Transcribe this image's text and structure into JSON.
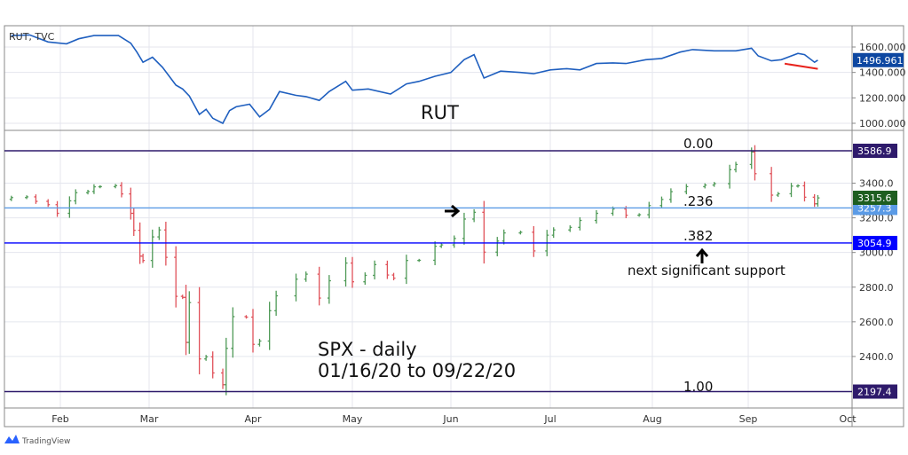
{
  "chart_data": [
    {
      "type": "line",
      "title": "RUT, TVC",
      "annotation": "RUT",
      "ylim": [
        900,
        1720
      ],
      "y_ticks": [
        "1600.000",
        "1400.000",
        "1200.000",
        "1000.000"
      ],
      "last_value_label": "1496.961",
      "line_color": "#1f5fbf",
      "series": [
        {
          "x": [
            "2020-01-16",
            "2020-01-22",
            "2020-01-28",
            "2020-02-03",
            "2020-02-07",
            "2020-02-12",
            "2020-02-20",
            "2020-02-24",
            "2020-02-26",
            "2020-02-28",
            "2020-03-02",
            "2020-03-05",
            "2020-03-09",
            "2020-03-11",
            "2020-03-13",
            "2020-03-16",
            "2020-03-18",
            "2020-03-20",
            "2020-03-23",
            "2020-03-25",
            "2020-03-27",
            "2020-03-31",
            "2020-04-03",
            "2020-04-06",
            "2020-04-09",
            "2020-04-14",
            "2020-04-17",
            "2020-04-21",
            "2020-04-24",
            "2020-04-29",
            "2020-05-01",
            "2020-05-06",
            "2020-05-13",
            "2020-05-18",
            "2020-05-22",
            "2020-05-27",
            "2020-06-01",
            "2020-06-05",
            "2020-06-08",
            "2020-06-11",
            "2020-06-16",
            "2020-06-22",
            "2020-06-26",
            "2020-07-01",
            "2020-07-06",
            "2020-07-10",
            "2020-07-15",
            "2020-07-20",
            "2020-07-24",
            "2020-07-30",
            "2020-08-04",
            "2020-08-10",
            "2020-08-14",
            "2020-08-21",
            "2020-08-28",
            "2020-09-02",
            "2020-09-04",
            "2020-09-08",
            "2020-09-11",
            "2020-09-16",
            "2020-09-18",
            "2020-09-21",
            "2020-09-22"
          ],
          "values": [
            1690,
            1695,
            1640,
            1625,
            1665,
            1690,
            1690,
            1630,
            1560,
            1480,
            1520,
            1440,
            1300,
            1270,
            1215,
            1070,
            1110,
            1040,
            1000,
            1100,
            1130,
            1150,
            1050,
            1110,
            1250,
            1220,
            1210,
            1180,
            1250,
            1330,
            1260,
            1270,
            1230,
            1310,
            1330,
            1370,
            1400,
            1500,
            1540,
            1356,
            1410,
            1400,
            1390,
            1420,
            1430,
            1420,
            1470,
            1475,
            1470,
            1500,
            1510,
            1560,
            1580,
            1570,
            1570,
            1590,
            1530,
            1491,
            1500,
            1550,
            1540,
            1480,
            1497
          ]
        }
      ],
      "trendline": {
        "color": "#e8231c",
        "from": [
          "2020-09-12",
          1469
        ],
        "to": [
          "2020-09-22",
          1428
        ]
      }
    },
    {
      "type": "ohlc",
      "title": "SPX - daily",
      "subtitle": "01/16/20 to 09/22/20",
      "ylim": [
        2170,
        3640
      ],
      "y_ticks": [
        "3400.0",
        "3200.0",
        "3000.0",
        "2800.0",
        "2600.0",
        "2400.0"
      ],
      "x_ticks": [
        "Feb",
        "Mar",
        "Apr",
        "May",
        "Jun",
        "Jul",
        "Aug",
        "Sep",
        "Oct"
      ],
      "up_color": "#4f9a57",
      "down_color": "#e0525a",
      "last_value_label": "3315.6",
      "series": [
        {
          "x": [
            "2020-01-16",
            "2020-01-21",
            "2020-01-24",
            "2020-01-28",
            "2020-01-31",
            "2020-02-04",
            "2020-02-06",
            "2020-02-10",
            "2020-02-12",
            "2020-02-14",
            "2020-02-19",
            "2020-02-21",
            "2020-02-24",
            "2020-02-25",
            "2020-02-27",
            "2020-02-28",
            "2020-03-02",
            "2020-03-04",
            "2020-03-06",
            "2020-03-09",
            "2020-03-11",
            "2020-03-12",
            "2020-03-13",
            "2020-03-16",
            "2020-03-18",
            "2020-03-20",
            "2020-03-23",
            "2020-03-24",
            "2020-03-26",
            "2020-03-30",
            "2020-04-01",
            "2020-04-03",
            "2020-04-06",
            "2020-04-08",
            "2020-04-14",
            "2020-04-17",
            "2020-04-21",
            "2020-04-24",
            "2020-04-29",
            "2020-05-01",
            "2020-05-05",
            "2020-05-08",
            "2020-05-12",
            "2020-05-14",
            "2020-05-18",
            "2020-05-22",
            "2020-05-27",
            "2020-05-29",
            "2020-06-02",
            "2020-06-05",
            "2020-06-08",
            "2020-06-11",
            "2020-06-15",
            "2020-06-17",
            "2020-06-22",
            "2020-06-26",
            "2020-06-30",
            "2020-07-02",
            "2020-07-07",
            "2020-07-10",
            "2020-07-15",
            "2020-07-20",
            "2020-07-24",
            "2020-07-28",
            "2020-07-31",
            "2020-08-04",
            "2020-08-07",
            "2020-08-12",
            "2020-08-18",
            "2020-08-21",
            "2020-08-26",
            "2020-08-28",
            "2020-09-02",
            "2020-09-03",
            "2020-09-08",
            "2020-09-10",
            "2020-09-14",
            "2020-09-16",
            "2020-09-18",
            "2020-09-21",
            "2020-09-22"
          ],
          "close": [
            3317,
            3321,
            3295,
            3276,
            3226,
            3298,
            3345,
            3352,
            3379,
            3380,
            3386,
            3338,
            3226,
            3128,
            2979,
            2954,
            3090,
            3130,
            2972,
            2747,
            2741,
            2481,
            2711,
            2386,
            2398,
            2305,
            2237,
            2447,
            2630,
            2627,
            2470,
            2489,
            2664,
            2750,
            2846,
            2875,
            2737,
            2837,
            2939,
            2831,
            2868,
            2930,
            2870,
            2852,
            2954,
            2955,
            3036,
            3044,
            3081,
            3193,
            3232,
            3002,
            3066,
            3113,
            3117,
            3009,
            3100,
            3130,
            3145,
            3185,
            3226,
            3251,
            3215,
            3218,
            3271,
            3306,
            3351,
            3380,
            3389,
            3397,
            3478,
            3508,
            3580,
            3455,
            3331,
            3339,
            3383,
            3385,
            3319,
            3281,
            3315
          ]
        }
      ],
      "levels": [
        {
          "label": "0.00",
          "value": 3586.9,
          "value_label": "3586.9",
          "color": "#2e1a6b"
        },
        {
          "label": ".236",
          "value": 3257.3,
          "value_label": "3257.3",
          "color": "#5b9be6"
        },
        {
          "label": ".382",
          "value": 3054.9,
          "value_label": "3054.9",
          "color": "#0000ff"
        },
        {
          "label": "1.00",
          "value": 2197.4,
          "value_label": "2197.4",
          "color": "#2e1a6b"
        }
      ],
      "annotations": {
        "support": "next significant support"
      }
    }
  ],
  "footer": {
    "brand": "TradingView"
  }
}
